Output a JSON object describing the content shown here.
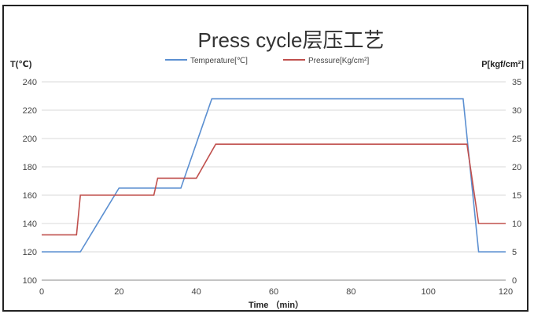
{
  "chart_data": {
    "type": "line",
    "title": "Press cycle层压工艺",
    "xlabel": "Time （min）",
    "ylabel_left": "T(℃)",
    "ylabel_right": "P[kgf/cm²]",
    "xlim": [
      0,
      120
    ],
    "ylim_left": [
      100,
      240
    ],
    "ylim_right": [
      0,
      35
    ],
    "x_ticks": [
      0,
      20,
      40,
      60,
      80,
      100,
      120
    ],
    "y_ticks_left": [
      100,
      120,
      140,
      160,
      180,
      200,
      220,
      240
    ],
    "y_ticks_right": [
      0,
      5,
      10,
      15,
      20,
      25,
      30,
      35
    ],
    "grid": true,
    "legend_position": "top-center",
    "series": [
      {
        "name": "Temperature[℃]",
        "axis": "left",
        "color": "#5b8fd1",
        "x": [
          0,
          10,
          20,
          36,
          44,
          109,
          113,
          120
        ],
        "y": [
          120,
          120,
          165,
          165,
          228,
          228,
          120,
          120
        ]
      },
      {
        "name": "Pressure[Kg/cm²]",
        "axis": "right",
        "color": "#c0504d",
        "x": [
          0,
          9,
          10,
          29,
          30,
          40,
          45,
          110,
          113,
          120
        ],
        "y": [
          8,
          8,
          15,
          15,
          18,
          18,
          24,
          24,
          10,
          10
        ]
      }
    ]
  }
}
